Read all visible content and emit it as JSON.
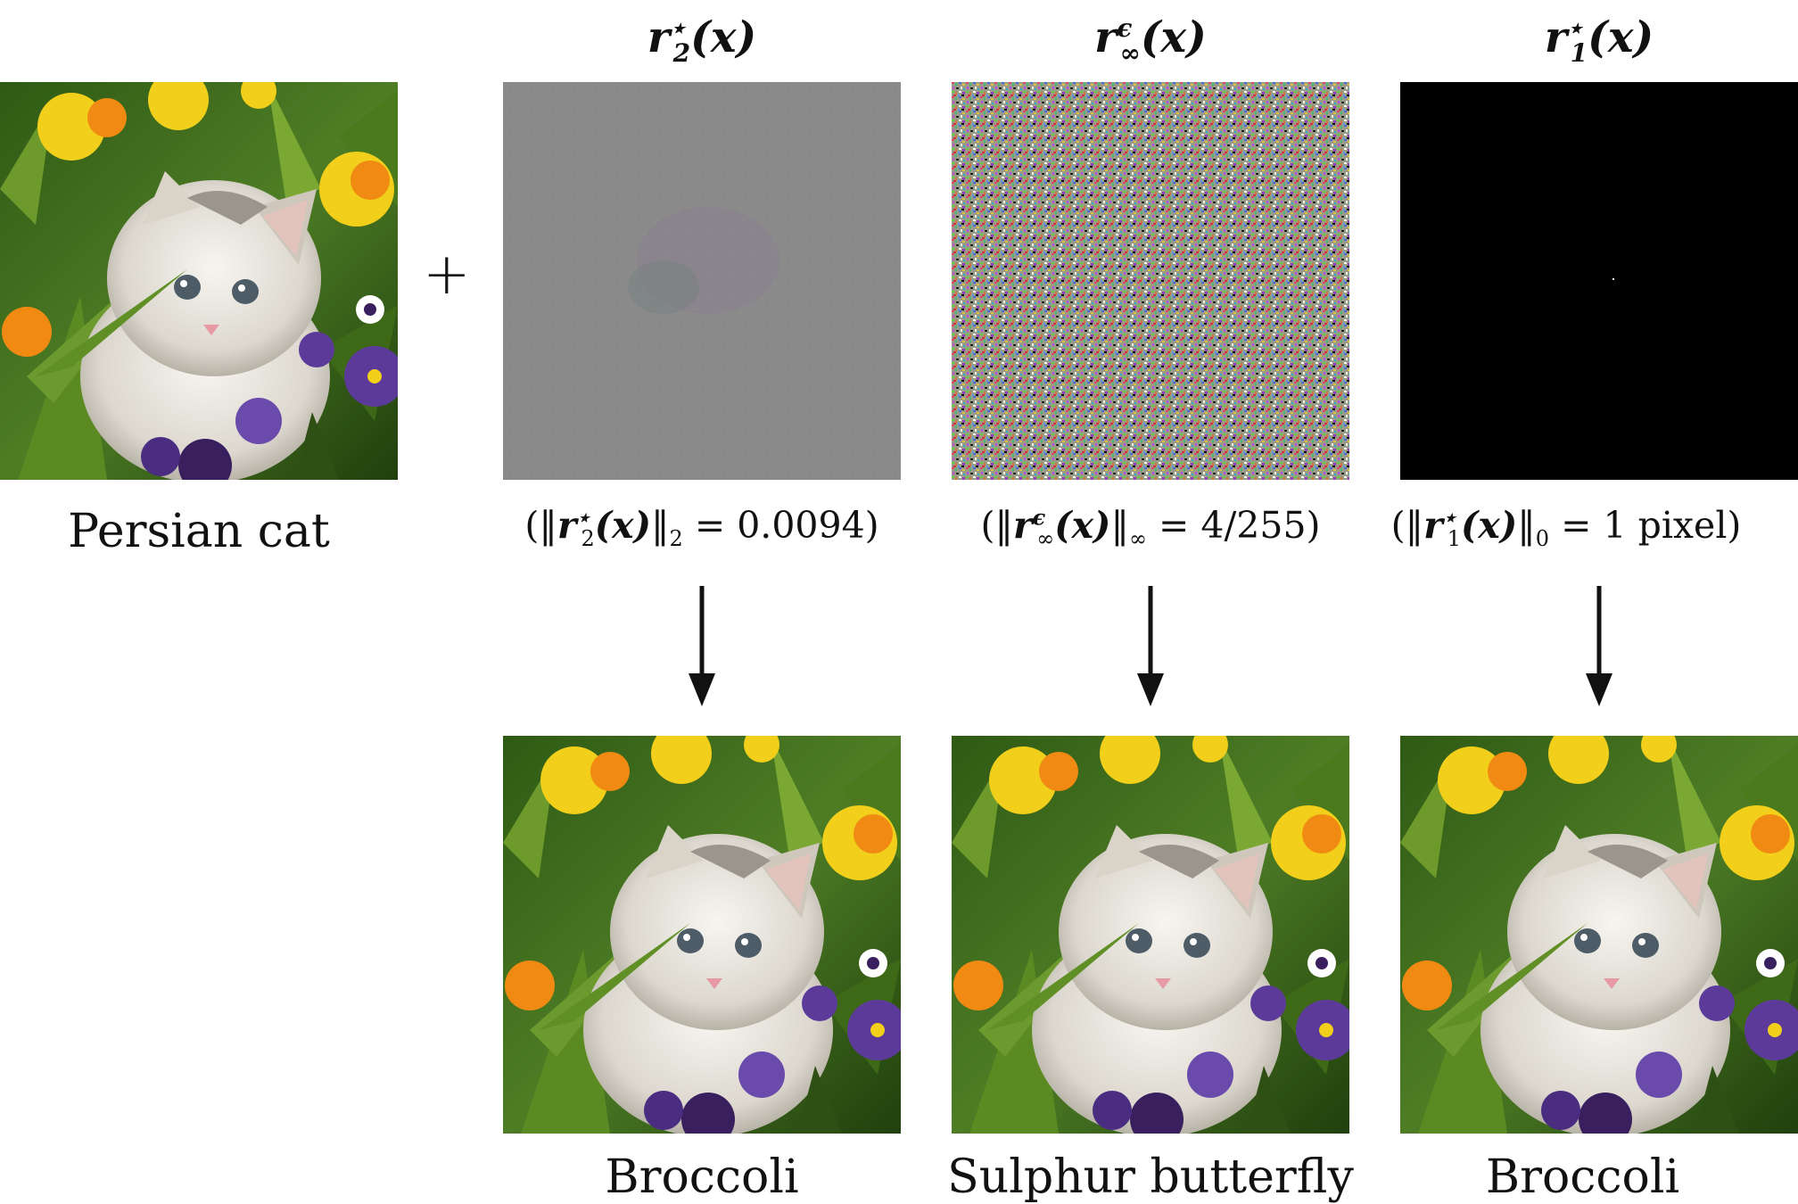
{
  "figure": {
    "original": {
      "label": "Persian cat"
    },
    "plus_symbol": "+",
    "columns": [
      {
        "title_base": "r",
        "title_sup": "⋆",
        "title_sub": "2",
        "title_arg": "(x)",
        "norm_text_pre": "(‖",
        "norm_var": "r",
        "norm_sup": "⋆",
        "norm_sub": "2",
        "norm_arg": "(x)",
        "norm_close": "‖",
        "norm_close_sub": "2",
        "norm_value": " = 0.0094)",
        "result_label": "Broccoli"
      },
      {
        "title_base": "r",
        "title_sup": "ϵ",
        "title_sub": "∞",
        "title_arg": "(x)",
        "norm_text_pre": "(‖",
        "norm_var": "r",
        "norm_sup": "ϵ",
        "norm_sub": "∞",
        "norm_arg": "(x)",
        "norm_close": "‖",
        "norm_close_sub": "∞",
        "norm_value": " = 4/255)",
        "result_label": "Sulphur butterfly"
      },
      {
        "title_base": "r",
        "title_sup": "⋆",
        "title_sub": "1",
        "title_arg": "(x)",
        "norm_text_pre": "(‖",
        "norm_var": "r",
        "norm_sup": "⋆",
        "norm_sub": "1",
        "norm_arg": "(x)",
        "norm_close": "‖",
        "norm_close_sub": "0",
        "norm_value": " = 1 pixel)",
        "result_label": "Broccoli"
      }
    ]
  },
  "colors": {
    "background": "#ffffff",
    "gray_perturbation": "#8a8a8a",
    "black_perturbation": "#000000",
    "foliage": "#3f6a1f",
    "flower_yellow": "#f2cf1a",
    "flower_orange": "#f08a12",
    "pansy_purple": "#5b3a9a",
    "kitten_white": "#ece9e2"
  }
}
